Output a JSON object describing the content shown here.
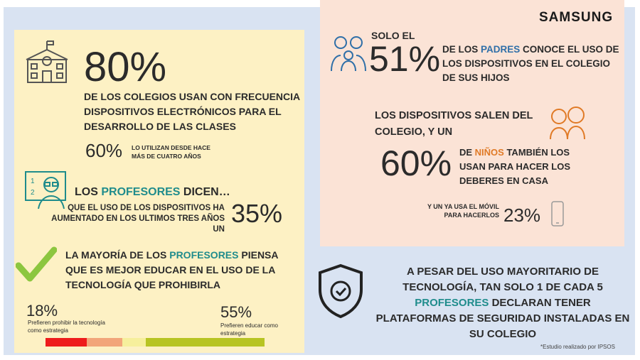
{
  "brand": "SAMSUNG",
  "left": {
    "schools": {
      "stat": "80%",
      "text": "DE LOS COLEGIOS USAN CON FRECUENCIA DISPOSITIVOS ELECTRÓNICOS PARA EL DESARROLLO DE LAS CLASES",
      "sub_stat": "60%",
      "sub_text": "LO UTILIZAN DESDE HACE MÁS DE CUATRO AÑOS"
    },
    "teachers_say": {
      "title": [
        "LOS ",
        "PROFESORES",
        " DICEN…"
      ],
      "text": "QUE EL USO DE LOS DISPOSITIVOS HA AUMENTADO EN LOS ULTIMOS TRES AÑOS UN",
      "stat": "35%"
    },
    "majority": {
      "text": [
        "LA MAYORÍA DE LOS ",
        "PROFESORES",
        " PIENSA QUE ES MEJOR EDUCAR EN EL USO DE LA TECNOLOGÍA QUE PROHIBIRLA"
      ],
      "prohibit_stat": "18%",
      "prohibit_text": "Prefieren prohibir la tecnología como estrategia",
      "educate_stat": "55%",
      "educate_text": "Prefieren educar como estrategia"
    }
  },
  "right": {
    "parents": {
      "lead": "SOLO EL",
      "stat": "51%",
      "text": [
        "DE LOS ",
        "PADRES",
        " CONOCE EL USO DE LOS DISPOSITIVOS EN EL COLEGIO DE SUS HIJOS"
      ]
    },
    "children": {
      "lead": "LOS DISPOSITIVOS SALEN DEL COLEGIO, Y UN",
      "stat": "60%",
      "text": [
        "DE ",
        "NIÑOS",
        " TAMBIÉN LOS USAN PARA HACER LOS DEBERES EN CASA"
      ],
      "mobile_text": "Y UN YA USA EL MÓVIL PARA HACERLOS",
      "mobile_stat": "23%"
    }
  },
  "security": {
    "text": [
      "A PESAR DEL USO MAYORITARIO DE TECNOLOGÍA, TAN SOLO 1 DE CADA 5 ",
      "PROFESORES",
      " DECLARAN TENER PLATAFORMAS DE SEGURIDAD INSTALADAS EN SU COLEGIO"
    ]
  },
  "footnote": "*Estudio realizado por IPSOS"
}
